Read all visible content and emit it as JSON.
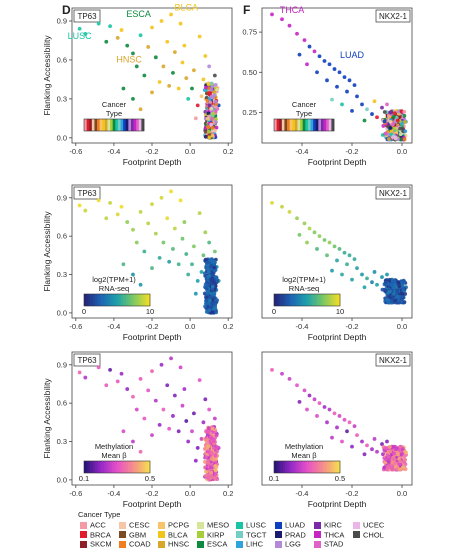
{
  "panel_letters": [
    "D",
    "F"
  ],
  "legend": {
    "title": "Cancer Type",
    "items": [
      {
        "label": "ACC",
        "color": "#f49aa7"
      },
      {
        "label": "BRCA",
        "color": "#e11a2c"
      },
      {
        "label": "SKCM",
        "color": "#8c1f28"
      },
      {
        "label": "CESC",
        "color": "#f5c7a8"
      },
      {
        "label": "GBM",
        "color": "#7a4a22"
      },
      {
        "label": "COAD",
        "color": "#f07d1f"
      },
      {
        "label": "PCPG",
        "color": "#f9c36c"
      },
      {
        "label": "BLCA",
        "color": "#f2c51b"
      },
      {
        "label": "HNSC",
        "color": "#d8a62a"
      },
      {
        "label": "MESO",
        "color": "#d7e59b"
      },
      {
        "label": "KIRP",
        "color": "#a6ce39"
      },
      {
        "label": "ESCA",
        "color": "#0d8a3d"
      },
      {
        "label": "LUSC",
        "color": "#18c4a4"
      },
      {
        "label": "TGCT",
        "color": "#73cfc3"
      },
      {
        "label": "LIHC",
        "color": "#2fa3dd"
      },
      {
        "label": "LUAD",
        "color": "#0f3fbf"
      },
      {
        "label": "PRAD",
        "color": "#1a1a6e"
      },
      {
        "label": "LGG",
        "color": "#b48ad8"
      },
      {
        "label": "KIRC",
        "color": "#7a2aa8"
      },
      {
        "label": "THCA",
        "color": "#c624c5"
      },
      {
        "label": "STAD",
        "color": "#e062c8"
      },
      {
        "label": "UCEC",
        "color": "#e9b6e7"
      },
      {
        "label": "CHOL",
        "color": "#4b4b4b"
      }
    ]
  },
  "chart_data": [
    {
      "type": "scatter",
      "panel": "D-top",
      "gene_label": "TP63",
      "xlabel": "Footprint Depth",
      "ylabel": "Flanking Accessibility",
      "xlim": [
        -0.62,
        0.22
      ],
      "ylim": [
        -0.04,
        1.0
      ],
      "xticks": [
        -0.6,
        -0.4,
        -0.2,
        0.0,
        0.2
      ],
      "xtick_labels": [
        "-0.6",
        "-0.4",
        "-0.2",
        "0.0",
        "0.2"
      ],
      "yticks": [
        0.0,
        0.3,
        0.6,
        0.9
      ],
      "ytick_labels": [
        "0.0",
        "0.3",
        "0.6",
        "0.9"
      ],
      "color_mode": "category",
      "color_legend": {
        "title_lines": [
          "Cancer",
          "Type"
        ]
      },
      "annotations": [
        {
          "text": "ESCA",
          "x": -0.27,
          "y": 0.93,
          "color": "#0d8a3d"
        },
        {
          "text": "BLCA",
          "x": -0.02,
          "y": 0.98,
          "color": "#f2c51b"
        },
        {
          "text": "LUSC",
          "x": -0.58,
          "y": 0.76,
          "color": "#18c4a4"
        },
        {
          "text": "HNSC",
          "x": -0.32,
          "y": 0.58,
          "color": "#d8a62a"
        }
      ]
    },
    {
      "type": "scatter",
      "panel": "F-top",
      "gene_label": "NKX2-1",
      "xlabel": "Footprint Depth",
      "ylabel": "",
      "xlim": [
        -0.56,
        0.04
      ],
      "ylim": [
        0.06,
        0.9
      ],
      "xticks": [
        -0.4,
        -0.2,
        0.0
      ],
      "xtick_labels": [
        "-0.4",
        "-0.2",
        "0.0"
      ],
      "yticks": [
        0.25,
        0.5,
        0.75
      ],
      "ytick_labels": [
        "0.25",
        "0.50",
        "0.75"
      ],
      "color_mode": "category",
      "color_legend": {
        "title_lines": [
          "Cancer",
          "Type"
        ]
      },
      "annotations": [
        {
          "text": "THCA",
          "x": -0.44,
          "y": 0.87,
          "color": "#c624c5"
        },
        {
          "text": "LUAD",
          "x": -0.2,
          "y": 0.59,
          "color": "#0f3fbf"
        }
      ]
    },
    {
      "type": "scatter",
      "panel": "D-mid",
      "gene_label": "TP63",
      "xlabel": "Footprint Depth",
      "ylabel": "Flanking Accessibility",
      "xlim": [
        -0.62,
        0.22
      ],
      "ylim": [
        -0.04,
        1.0
      ],
      "xticks": [
        -0.6,
        -0.4,
        -0.2,
        0.0,
        0.2
      ],
      "xtick_labels": [
        "-0.6",
        "-0.4",
        "-0.2",
        "0.0",
        "0.2"
      ],
      "yticks": [
        0.0,
        0.3,
        0.6,
        0.9
      ],
      "ytick_labels": [
        "0.0",
        "0.3",
        "0.6",
        "0.9"
      ],
      "color_mode": "expression",
      "color_legend": {
        "title_lines": [
          "log2(TPM+1)",
          "RNA-seq"
        ],
        "min_label": "0",
        "max_label": "10"
      }
    },
    {
      "type": "scatter",
      "panel": "F-mid",
      "gene_label": "NKX2-1",
      "xlabel": "Footprint Depth",
      "ylabel": "",
      "xlim": [
        -0.56,
        0.04
      ],
      "ylim": [
        -0.04,
        1.0
      ],
      "xticks": [
        -0.4,
        -0.2,
        0.0
      ],
      "xtick_labels": [
        "-0.4",
        "-0.2",
        "0.0"
      ],
      "yticks": [],
      "ytick_labels": [],
      "color_mode": "expression",
      "color_legend": {
        "title_lines": [
          "log2(TPM+1)",
          "RNA-seq"
        ],
        "min_label": "0",
        "max_label": "10"
      }
    },
    {
      "type": "scatter",
      "panel": "D-bot",
      "gene_label": "TP63",
      "xlabel": "Footprint Depth",
      "ylabel": "Flanking Accessibility",
      "xlim": [
        -0.62,
        0.22
      ],
      "ylim": [
        -0.04,
        1.0
      ],
      "xticks": [
        -0.6,
        -0.4,
        -0.2,
        0.0,
        0.2
      ],
      "xtick_labels": [
        "-0.6",
        "-0.4",
        "-0.2",
        "0.0",
        "0.2"
      ],
      "yticks": [
        0.0,
        0.3,
        0.6,
        0.9
      ],
      "ytick_labels": [
        "0.0",
        "0.3",
        "0.6",
        "0.9"
      ],
      "color_mode": "methylation",
      "color_legend": {
        "title_lines": [
          "Methylation",
          "Mean β"
        ],
        "min_label": "0.1",
        "max_label": "0.5"
      }
    },
    {
      "type": "scatter",
      "panel": "F-bot",
      "gene_label": "NKX2-1",
      "xlabel": "Footprint Depth",
      "ylabel": "",
      "xlim": [
        -0.56,
        0.04
      ],
      "ylim": [
        -0.04,
        1.0
      ],
      "xticks": [
        -0.4,
        -0.2,
        0.0
      ],
      "xtick_labels": [
        "-0.4",
        "-0.2",
        "0.0"
      ],
      "yticks": [],
      "ytick_labels": [],
      "color_mode": "methylation",
      "color_legend": {
        "title_lines": [
          "Methylation",
          "Mean β"
        ],
        "min_label": "0.1",
        "max_label": "0.5"
      }
    }
  ],
  "points_TP63": [
    [
      -0.58,
      0.84,
      "LUSC"
    ],
    [
      -0.55,
      0.8,
      "LUSC"
    ],
    [
      -0.48,
      0.88,
      "LUSC"
    ],
    [
      -0.42,
      0.86,
      "LUSC"
    ],
    [
      -0.36,
      0.83,
      "BLCA"
    ],
    [
      -0.44,
      0.74,
      "ESCA"
    ],
    [
      -0.38,
      0.77,
      "HNSC"
    ],
    [
      -0.33,
      0.71,
      "ESCA"
    ],
    [
      -0.3,
      0.65,
      "ESCA"
    ],
    [
      -0.26,
      0.79,
      "LUSC"
    ],
    [
      -0.2,
      0.85,
      "BLCA"
    ],
    [
      -0.15,
      0.9,
      "BLCA"
    ],
    [
      -0.1,
      0.95,
      "BLCA"
    ],
    [
      -0.05,
      0.88,
      "BLCA"
    ],
    [
      -0.22,
      0.7,
      "HNSC"
    ],
    [
      -0.18,
      0.62,
      "ESCA"
    ],
    [
      -0.12,
      0.74,
      "BLCA"
    ],
    [
      -0.08,
      0.66,
      "HNSC"
    ],
    [
      -0.28,
      0.55,
      "ESCA"
    ],
    [
      -0.24,
      0.48,
      "ESCA"
    ],
    [
      -0.14,
      0.55,
      "HNSC"
    ],
    [
      -0.09,
      0.5,
      "ESCA"
    ],
    [
      -0.03,
      0.71,
      "BLCA"
    ],
    [
      -0.04,
      0.58,
      "BLCA"
    ],
    [
      -0.02,
      0.46,
      "HNSC"
    ],
    [
      0.01,
      0.38,
      "ESCA"
    ],
    [
      -0.16,
      0.43,
      "BLCA"
    ],
    [
      -0.2,
      0.35,
      "HNSC"
    ],
    [
      -0.11,
      0.4,
      "HNSC"
    ],
    [
      -0.06,
      0.38,
      "BLCA"
    ],
    [
      0.05,
      0.78,
      "BLCA"
    ],
    [
      0.08,
      0.63,
      "BLCA"
    ],
    [
      0.02,
      0.52,
      "HNSC"
    ],
    [
      0.07,
      0.45,
      "BLCA"
    ],
    [
      -0.01,
      0.3,
      "LUSC"
    ],
    [
      0.04,
      0.25,
      "BRCA"
    ],
    [
      0.08,
      0.2,
      "KIRC"
    ],
    [
      0.11,
      0.4,
      "LIHC"
    ],
    [
      0.12,
      0.33,
      "TGCT"
    ],
    [
      -0.3,
      0.3,
      "ESCA"
    ],
    [
      -0.35,
      0.38,
      "ESCA"
    ],
    [
      -0.26,
      0.22,
      "HNSC"
    ],
    [
      0.14,
      0.36,
      "STAD"
    ],
    [
      0.1,
      0.55,
      "LGG"
    ],
    [
      0.13,
      0.48,
      "CHOL"
    ],
    [
      0.06,
      0.32,
      "PCPG"
    ],
    [
      0.09,
      0.29,
      "COAD"
    ],
    [
      0.15,
      0.25,
      "LUAD"
    ],
    [
      0.03,
      0.15,
      "ACC"
    ],
    [
      0.12,
      0.08,
      "UCEC"
    ]
  ],
  "points_NKX": [
    [
      -0.52,
      0.86,
      "THCA"
    ],
    [
      -0.48,
      0.83,
      "THCA"
    ],
    [
      -0.45,
      0.79,
      "THCA"
    ],
    [
      -0.42,
      0.74,
      "THCA"
    ],
    [
      -0.39,
      0.7,
      "THCA"
    ],
    [
      -0.37,
      0.66,
      "LUAD"
    ],
    [
      -0.35,
      0.63,
      "THCA"
    ],
    [
      -0.33,
      0.6,
      "LUAD"
    ],
    [
      -0.31,
      0.57,
      "LUAD"
    ],
    [
      -0.29,
      0.55,
      "LUAD"
    ],
    [
      -0.27,
      0.52,
      "LUAD"
    ],
    [
      -0.25,
      0.5,
      "LUAD"
    ],
    [
      -0.23,
      0.47,
      "LUAD"
    ],
    [
      -0.21,
      0.45,
      "LUAD"
    ],
    [
      -0.19,
      0.42,
      "LUAD"
    ],
    [
      -0.34,
      0.5,
      "LUAD"
    ],
    [
      -0.3,
      0.45,
      "LUAD"
    ],
    [
      -0.26,
      0.41,
      "LUAD"
    ],
    [
      -0.22,
      0.38,
      "LUAD"
    ],
    [
      -0.18,
      0.35,
      "LUAD"
    ],
    [
      -0.16,
      0.3,
      "LUAD"
    ],
    [
      -0.14,
      0.27,
      "TGCT"
    ],
    [
      -0.12,
      0.24,
      "LUAD"
    ],
    [
      -0.1,
      0.22,
      "BRCA"
    ],
    [
      -0.38,
      0.55,
      "THCA"
    ],
    [
      -0.41,
      0.61,
      "LUAD"
    ],
    [
      -0.28,
      0.33,
      "TGCT"
    ],
    [
      -0.24,
      0.3,
      "LUSC"
    ],
    [
      -0.2,
      0.26,
      "LUAD"
    ],
    [
      -0.08,
      0.28,
      "KIRC"
    ],
    [
      -0.06,
      0.3,
      "STAD"
    ],
    [
      -0.04,
      0.26,
      "LGG"
    ],
    [
      -0.02,
      0.22,
      "COAD"
    ],
    [
      -0.11,
      0.32,
      "BLCA"
    ],
    [
      -0.15,
      0.2,
      "ESCA"
    ]
  ],
  "clusters": {
    "TP63": {
      "n": 360,
      "x_center": 0.11,
      "x_spread": 0.035,
      "y_min": 0.0,
      "y_max": 0.42
    },
    "NKX2-1": {
      "n": 320,
      "x_center": -0.03,
      "x_spread": 0.05,
      "y_min": 0.08,
      "y_max": 0.26
    }
  }
}
